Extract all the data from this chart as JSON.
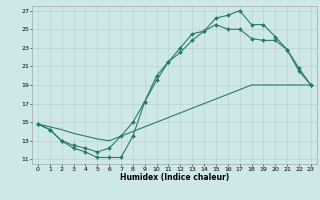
{
  "title": "",
  "xlabel": "Humidex (Indice chaleur)",
  "background_color": "#cee8e8",
  "grid_color": "#b0d0cc",
  "line_color": "#2a7a6a",
  "xlim": [
    -0.5,
    23.5
  ],
  "ylim": [
    10.5,
    27.5
  ],
  "xticks": [
    0,
    1,
    2,
    3,
    4,
    5,
    6,
    7,
    8,
    9,
    10,
    11,
    12,
    13,
    14,
    15,
    16,
    17,
    18,
    19,
    20,
    21,
    22,
    23
  ],
  "yticks": [
    11,
    13,
    15,
    17,
    19,
    21,
    23,
    25,
    27
  ],
  "line1_x": [
    0,
    1,
    2,
    3,
    4,
    5,
    6,
    7,
    8,
    9,
    10,
    11,
    12,
    13,
    14,
    15,
    16,
    17,
    18,
    19,
    20,
    21,
    22,
    23
  ],
  "line1_y": [
    14.8,
    14.2,
    13.0,
    12.2,
    11.8,
    11.2,
    11.2,
    11.2,
    13.5,
    17.2,
    20.0,
    21.5,
    23.0,
    24.5,
    24.8,
    26.2,
    26.5,
    27.0,
    25.5,
    25.5,
    24.2,
    22.8,
    20.5,
    19.0
  ],
  "line2_x": [
    0,
    1,
    2,
    3,
    4,
    5,
    6,
    7,
    8,
    9,
    10,
    11,
    12,
    13,
    14,
    15,
    16,
    17,
    18,
    19,
    20,
    21,
    22,
    23
  ],
  "line2_y": [
    14.8,
    14.2,
    13.0,
    12.5,
    12.2,
    11.8,
    12.2,
    13.5,
    15.0,
    17.2,
    19.5,
    21.5,
    22.5,
    23.8,
    24.8,
    25.5,
    25.0,
    25.0,
    24.0,
    23.8,
    23.8,
    22.8,
    20.8,
    19.0
  ],
  "line3_x": [
    0,
    1,
    2,
    3,
    4,
    5,
    6,
    7,
    8,
    9,
    10,
    11,
    12,
    13,
    14,
    15,
    16,
    17,
    18,
    19,
    20,
    21,
    22,
    23
  ],
  "line3_y": [
    14.8,
    14.5,
    14.2,
    13.8,
    13.5,
    13.2,
    13.0,
    13.5,
    14.0,
    14.5,
    15.0,
    15.5,
    16.0,
    16.5,
    17.0,
    17.5,
    18.0,
    18.5,
    19.0,
    19.0,
    19.0,
    19.0,
    19.0,
    19.0
  ],
  "figsize": [
    3.2,
    2.0
  ],
  "dpi": 100
}
